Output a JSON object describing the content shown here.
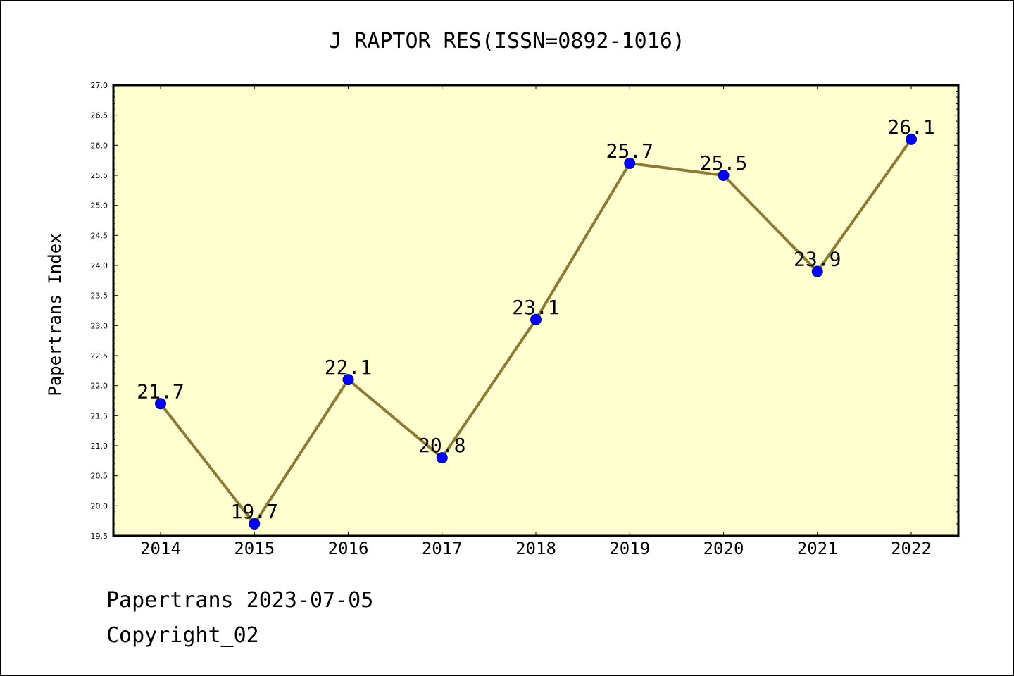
{
  "chart_data": {
    "type": "line",
    "title": "J RAPTOR RES(ISSN=0892-1016)",
    "xlabel": "",
    "ylabel": "Papertrans Index",
    "categories": [
      "2014",
      "2015",
      "2016",
      "2017",
      "2018",
      "2019",
      "2020",
      "2021",
      "2022"
    ],
    "series": [
      {
        "values": [
          21.7,
          19.7,
          22.1,
          20.8,
          23.1,
          25.7,
          25.5,
          23.9,
          26.1
        ]
      }
    ],
    "data_labels": [
      "21.7",
      "19.7",
      "22.1",
      "20.8",
      "23.1",
      "25.7",
      "25.5",
      "23.9",
      "26.1"
    ],
    "ylim": [
      19.5,
      27.0
    ],
    "yticks": [
      "19.5",
      "20.0",
      "20.5",
      "21.0",
      "21.5",
      "22.0",
      "22.5",
      "23.0",
      "23.5",
      "24.0",
      "24.5",
      "25.0",
      "25.5",
      "26.0",
      "26.5",
      "27.0"
    ],
    "grid": false,
    "colors": {
      "plot_background": "#ffffd0",
      "line": "#8c7a35",
      "marker": "#0000ff"
    }
  },
  "footer": {
    "line1": "Papertrans 2023-07-05",
    "line2": "Copyright_02"
  }
}
